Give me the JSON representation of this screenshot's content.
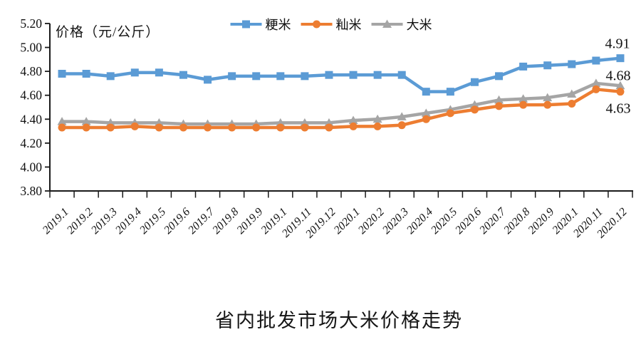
{
  "colors": {
    "japonica_blue": "#5B9BD5",
    "indica_orange": "#ED7D31",
    "rice_gray": "#A5A5A5",
    "axis": "#1a1a1a",
    "text": "#111111"
  },
  "chart_data": {
    "type": "line",
    "title": "省内批发市场大米价格走势",
    "ylabel": "价格（元/公斤）",
    "xlabel": "",
    "ylim": [
      3.8,
      5.2
    ],
    "yticks": [
      "5.20",
      "5.00",
      "4.80",
      "4.60",
      "4.40",
      "4.20",
      "4.00",
      "3.80"
    ],
    "grid": false,
    "legend_position": "top-center",
    "categories": [
      "2019.1",
      "2019.2",
      "2019.3",
      "2019.4",
      "2019.5",
      "2019.6",
      "2019.7",
      "2019.8",
      "2019.9",
      "2019.1",
      "2019.11",
      "2019.12",
      "2020.1",
      "2020.2",
      "2020.3",
      "2020.4",
      "2020.5",
      "2020.6",
      "2020.7",
      "2020.8",
      "2020.9",
      "2020.1",
      "2020.11",
      "2020.12"
    ],
    "series": [
      {
        "name": "粳米",
        "marker": "square",
        "color": "#5B9BD5",
        "values": [
          4.78,
          4.78,
          4.76,
          4.79,
          4.79,
          4.77,
          4.73,
          4.76,
          4.76,
          4.76,
          4.76,
          4.77,
          4.77,
          4.77,
          4.77,
          4.63,
          4.63,
          4.71,
          4.76,
          4.84,
          4.85,
          4.86,
          4.89,
          4.91
        ]
      },
      {
        "name": "籼米",
        "marker": "circle",
        "color": "#ED7D31",
        "values": [
          4.33,
          4.33,
          4.33,
          4.34,
          4.33,
          4.33,
          4.33,
          4.33,
          4.33,
          4.33,
          4.33,
          4.33,
          4.34,
          4.34,
          4.35,
          4.4,
          4.45,
          4.48,
          4.51,
          4.52,
          4.52,
          4.53,
          4.65,
          4.63
        ]
      },
      {
        "name": "大米",
        "marker": "triangle",
        "color": "#A5A5A5",
        "values": [
          4.38,
          4.38,
          4.37,
          4.37,
          4.37,
          4.36,
          4.36,
          4.36,
          4.36,
          4.37,
          4.37,
          4.37,
          4.39,
          4.4,
          4.42,
          4.45,
          4.48,
          4.52,
          4.56,
          4.57,
          4.58,
          4.61,
          4.7,
          4.68
        ]
      }
    ],
    "end_labels": [
      {
        "series": "粳米",
        "text": "4.91"
      },
      {
        "series": "大米",
        "text": "4.68"
      },
      {
        "series": "籼米",
        "text": "4.63"
      }
    ]
  }
}
